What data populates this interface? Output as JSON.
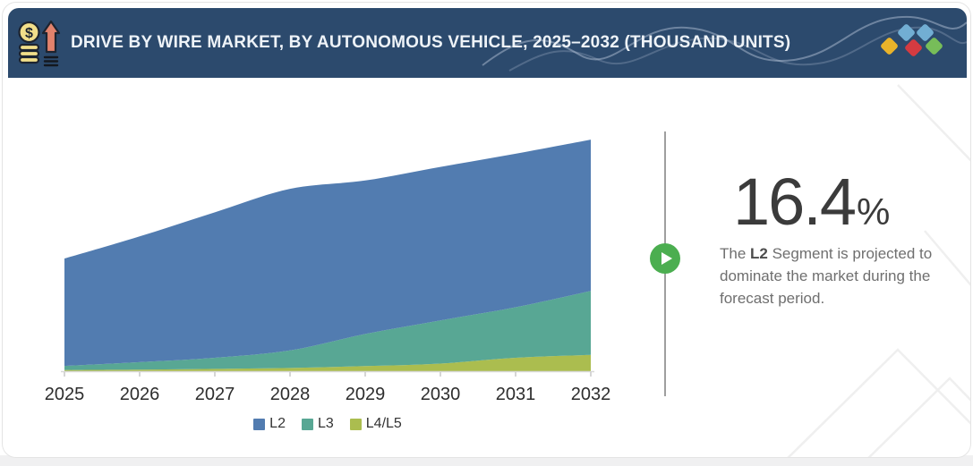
{
  "header": {
    "title": "DRIVE BY WIRE MARKET, BY AUTONOMOUS VEHICLE, 2025–2032 (THOUSAND UNITS)",
    "icon": "money-growth-icon",
    "background_color": "#2c4a6d",
    "text_color": "#eef3f8",
    "diamonds": [
      "#72aed3",
      "#72aed3",
      "#e9b32a",
      "#d43b41",
      "#77bd59"
    ]
  },
  "chart_data": {
    "type": "area",
    "stacked": true,
    "title": "Drive by Wire Market, by Autonomous Vehicle, 2025–2032 (Thousand Units)",
    "categories": [
      "2025",
      "2026",
      "2027",
      "2028",
      "2029",
      "2030",
      "2031",
      "2032"
    ],
    "series": [
      {
        "name": "L2",
        "color": "#527cb0",
        "values": [
          465,
          545,
          630,
          700,
          665,
          665,
          665,
          655
        ]
      },
      {
        "name": "L3",
        "color": "#58a794",
        "values": [
          18,
          32,
          48,
          76,
          139,
          187,
          219,
          277
        ]
      },
      {
        "name": "L4/L5",
        "color": "#abbd4f",
        "values": [
          5,
          7,
          10,
          14,
          22,
          33,
          58,
          71
        ]
      }
    ],
    "stack_bottom_to_top": [
      "L4/L5",
      "L3",
      "L2"
    ],
    "xlabel": "",
    "ylabel": "Thousand Units",
    "ylim": [
      0,
      1050
    ],
    "y_axis_visible": false,
    "grid": false,
    "legend_position": "bottom",
    "axis_label_color": "#2d2d2d",
    "axis_line_color": "#d8d8d8"
  },
  "insight": {
    "stat_value": "16.4",
    "stat_unit": "%",
    "prefix": "The ",
    "highlight": "L2",
    "suffix": " Segment is projected to dominate the market during the forecast period.",
    "accent_color": "#4bae50"
  }
}
